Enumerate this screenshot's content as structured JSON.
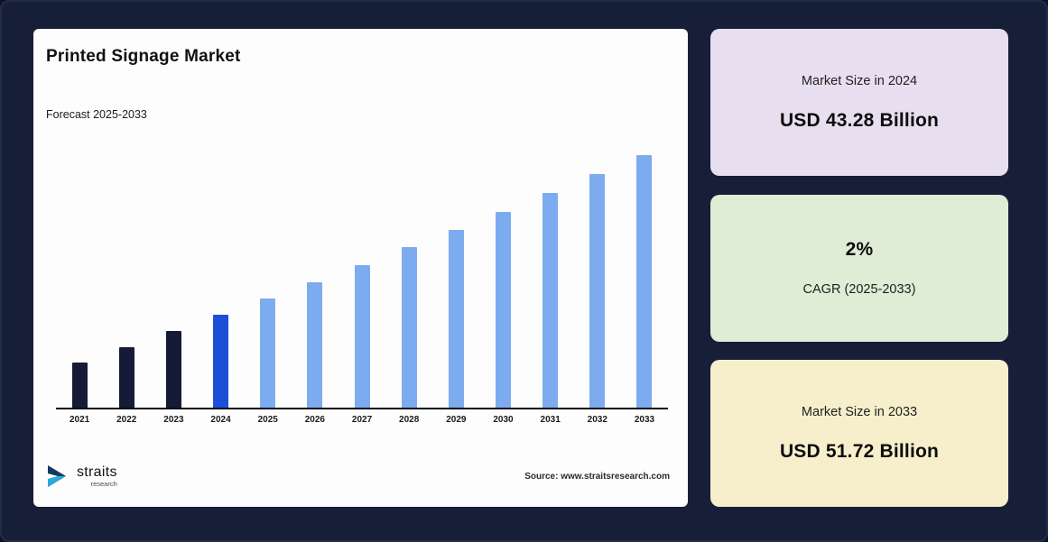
{
  "page": {
    "background": "#171e38"
  },
  "chart_card": {
    "title": "Printed Signage Market",
    "subtitle": "Forecast 2025-2033",
    "source": "Source: www.straitsresearch.com",
    "logo_text": "straits",
    "logo_sub": "research"
  },
  "cards": [
    {
      "label": "Market Size in 2024",
      "value": "USD 43.28 Billion",
      "bg": "#e7dfef"
    },
    {
      "label": "CAGR (2025-2033)",
      "value": "2%",
      "bg": "#dfecd6"
    },
    {
      "label": "Market Size in 2033",
      "value": "USD 51.72 Billion",
      "bg": "#f7efcb"
    }
  ],
  "chart_data": {
    "type": "bar",
    "title": "Printed Signage Market",
    "subtitle": "Forecast 2025-2033",
    "unit": "USD Billion",
    "cagr_pct": 2,
    "categories": [
      "2021",
      "2022",
      "2023",
      "2024",
      "2025",
      "2026",
      "2027",
      "2028",
      "2029",
      "2030",
      "2031",
      "2032",
      "2033"
    ],
    "values": [
      40.78,
      41.6,
      42.43,
      43.28,
      44.15,
      45.03,
      45.93,
      46.85,
      47.79,
      48.74,
      49.72,
      50.71,
      51.72
    ],
    "bar_colors": [
      "#151b36",
      "#151b36",
      "#151b36",
      "#1d4ed8",
      "#7dabef",
      "#7dabef",
      "#7dabef",
      "#7dabef",
      "#7dabef",
      "#7dabef",
      "#7dabef",
      "#7dabef",
      "#7dabef"
    ],
    "ylim": [
      40,
      52
    ],
    "grid": false,
    "legend": false,
    "annotations": {
      "market_size_2024": "USD 43.28 Billion",
      "market_size_2033": "USD 51.72 Billion",
      "cagr": "2% CAGR (2025-2033)"
    }
  }
}
